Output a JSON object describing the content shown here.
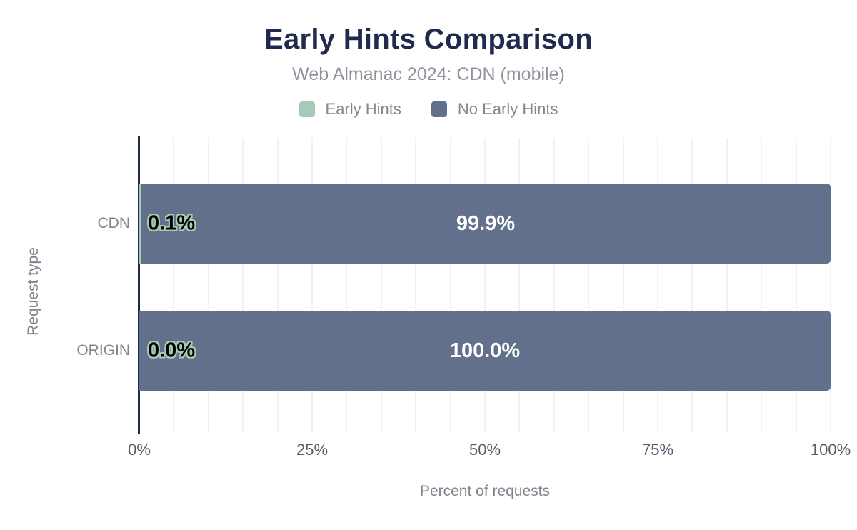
{
  "chart_data": {
    "type": "bar",
    "orientation": "horizontal",
    "stacked": true,
    "title": "Early Hints Comparison",
    "subtitle": "Web Almanac 2024: CDN (mobile)",
    "xlabel": "Percent of requests",
    "ylabel": "Request type",
    "categories": [
      "CDN",
      "ORIGIN"
    ],
    "series": [
      {
        "name": "Early Hints",
        "color": "#a6cab5",
        "values": [
          0.1,
          0.0
        ],
        "labels": [
          "0.1%",
          "0.0%"
        ]
      },
      {
        "name": "No Early Hints",
        "color": "#62708b",
        "values": [
          99.9,
          100.0
        ],
        "labels": [
          "99.9%",
          "100.0%"
        ]
      }
    ],
    "xlim": [
      0,
      100
    ],
    "x_ticks": [
      {
        "value": 0,
        "label": "0%"
      },
      {
        "value": 25,
        "label": "25%"
      },
      {
        "value": 50,
        "label": "50%"
      },
      {
        "value": 75,
        "label": "75%"
      },
      {
        "value": 100,
        "label": "100%"
      }
    ],
    "minor_grid_step": 5,
    "grid": true,
    "legend_position": "top"
  },
  "colors": {
    "title": "#1f2b4d",
    "subtitle": "#8e939d",
    "axis_line": "#1c2b45",
    "gridline": "#f1f1f2",
    "tick_label": "#545c69",
    "category_label": "#7e838d",
    "bar_label_on_dark": "#ffffff",
    "bar_label_outline": "#a6cab5"
  }
}
